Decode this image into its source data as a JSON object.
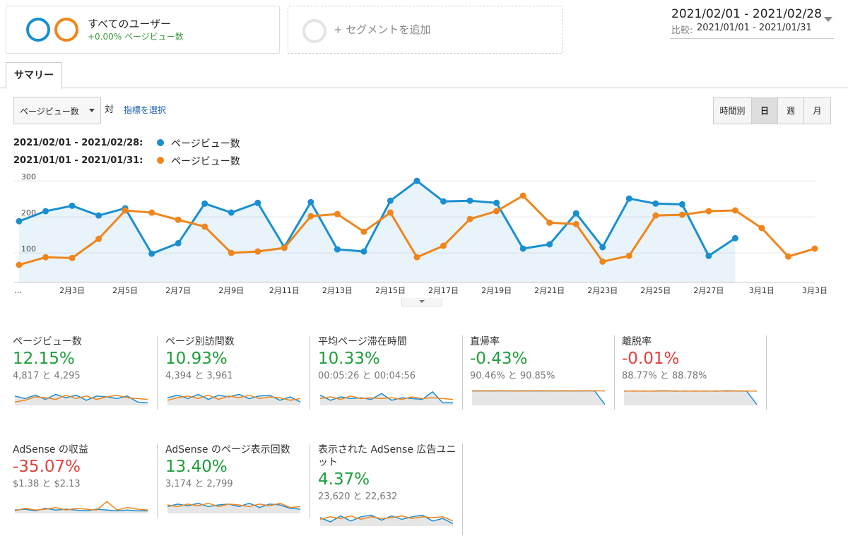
{
  "header": {
    "segment_title": "すべてのユーザー",
    "segment_sub": "+0.00% ページビュー数",
    "add_segment": "+ セグメントを追加",
    "date_range": "2021/02/01 - 2021/02/28",
    "compare_label": "比較:",
    "compare_range": "2021/01/01 - 2021/01/31"
  },
  "tab": "サマリー",
  "controls": {
    "metric": "ページビュー数",
    "vs": "対",
    "select_metric": "指標を選択",
    "periods": [
      "時間別",
      "日",
      "週",
      "月"
    ]
  },
  "chart_data": {
    "type": "line",
    "legend": [
      {
        "range": "2021/02/01 - 2021/02/28:",
        "name": "ページビュー数"
      },
      {
        "range": "2021/01/01 - 2021/01/31:",
        "name": "ページビュー数"
      }
    ],
    "categories": [
      "…",
      null,
      "2月3日",
      null,
      "2月5日",
      null,
      "2月7日",
      null,
      "2月9日",
      null,
      "2月11日",
      null,
      "2月13日",
      null,
      "2月15日",
      null,
      "2月17日",
      null,
      "2月19日",
      null,
      "2月21日",
      null,
      "2月23日",
      null,
      "2月25日",
      null,
      "2月27日",
      null,
      "3月1日",
      null,
      "3月3日"
    ],
    "series": [
      {
        "name": "ページビュー数",
        "color": "#1a8fd0",
        "area": true,
        "values": [
          188,
          216,
          231,
          204,
          224,
          98,
          127,
          237,
          212,
          239,
          116,
          241,
          110,
          104,
          245,
          300,
          243,
          245,
          239,
          112,
          124,
          210,
          116,
          251,
          237,
          235,
          92,
          141,
          null,
          null,
          null
        ]
      },
      {
        "name": "ページビュー数",
        "color": "#f0851c",
        "area": false,
        "values": [
          67,
          88,
          86,
          139,
          218,
          212,
          192,
          173,
          100,
          104,
          114,
          202,
          208,
          159,
          212,
          88,
          120,
          194,
          216,
          259,
          184,
          180,
          76,
          92,
          204,
          206,
          216,
          218,
          169,
          90,
          112
        ]
      }
    ],
    "ylim": [
      18,
      318
    ],
    "yticks": [
      100,
      200,
      300
    ],
    "grid": true
  },
  "spark_ylim": [
    0,
    100
  ],
  "tiles": [
    {
      "title": "ページビュー数",
      "change": "12.15%",
      "color": "#1e9e3a",
      "compare": "4,817 と 4,295",
      "current": [
        55,
        40,
        60,
        35,
        65,
        45,
        60,
        30,
        55,
        50,
        40,
        55,
        20,
        15
      ],
      "previous": [
        20,
        30,
        50,
        45,
        35,
        60,
        40,
        55,
        35,
        50,
        60,
        45,
        40,
        35
      ]
    },
    {
      "title": "ページ別訪問数",
      "change": "10.93%",
      "color": "#1e9e3a",
      "compare": "4,394 と 3,961",
      "current": [
        45,
        60,
        40,
        65,
        35,
        60,
        50,
        65,
        40,
        55,
        60,
        30,
        50,
        20
      ],
      "previous": [
        30,
        45,
        55,
        40,
        60,
        35,
        55,
        45,
        60,
        40,
        50,
        45,
        30,
        40
      ]
    },
    {
      "title": "平均ページ滞在時間",
      "change": "10.33%",
      "color": "#1e9e3a",
      "compare": "00:05:26 と 00:04:56",
      "current": [
        60,
        30,
        50,
        40,
        45,
        35,
        70,
        30,
        45,
        40,
        35,
        80,
        15,
        15
      ],
      "previous": [
        40,
        50,
        35,
        55,
        40,
        45,
        40,
        45,
        35,
        50,
        40,
        45,
        40,
        35
      ]
    },
    {
      "title": "直帰率",
      "change": "-0.43%",
      "color": "#1e9e3a",
      "compare": "90.46% と 90.85%",
      "current": [
        85,
        86,
        85,
        86,
        85,
        86,
        85,
        86,
        85,
        86,
        85,
        86,
        85,
        5
      ],
      "previous": [
        86,
        85,
        86,
        86,
        85,
        85,
        86,
        86,
        85,
        86,
        85,
        86,
        86,
        85
      ]
    },
    {
      "title": "離脱率",
      "change": "-0.01%",
      "color": "#e0403a",
      "compare": "88.77% と 88.78%",
      "current": [
        84,
        85,
        84,
        85,
        86,
        84,
        85,
        84,
        85,
        84,
        86,
        85,
        84,
        5
      ],
      "previous": [
        85,
        84,
        85,
        84,
        85,
        85,
        84,
        85,
        84,
        85,
        84,
        85,
        85,
        84
      ]
    },
    {
      "title": "AdSense の収益",
      "change": "-35.07%",
      "color": "#e0403a",
      "compare": "$1.38 と $2.13",
      "current": [
        20,
        25,
        15,
        30,
        20,
        25,
        20,
        15,
        25,
        20,
        15,
        20,
        15,
        15
      ],
      "previous": [
        15,
        30,
        20,
        25,
        35,
        20,
        30,
        25,
        20,
        70,
        20,
        35,
        25,
        20
      ]
    },
    {
      "title": "AdSense のページ表示回数",
      "change": "13.40%",
      "color": "#1e9e3a",
      "compare": "3,174 と 2,799",
      "current": [
        40,
        55,
        45,
        60,
        40,
        50,
        55,
        40,
        60,
        35,
        55,
        50,
        30,
        25
      ],
      "previous": [
        50,
        40,
        55,
        45,
        60,
        40,
        55,
        50,
        40,
        55,
        45,
        60,
        35,
        40
      ]
    },
    {
      "title": "表示された AdSense 広告ユニット",
      "change": "4.37%",
      "color": "#1e9e3a",
      "compare": "23,620 と 22,632",
      "current": [
        50,
        25,
        60,
        30,
        55,
        65,
        35,
        60,
        40,
        55,
        65,
        30,
        45,
        15
      ],
      "previous": [
        40,
        55,
        45,
        60,
        40,
        55,
        45,
        50,
        60,
        45,
        55,
        50,
        55,
        30
      ]
    }
  ]
}
